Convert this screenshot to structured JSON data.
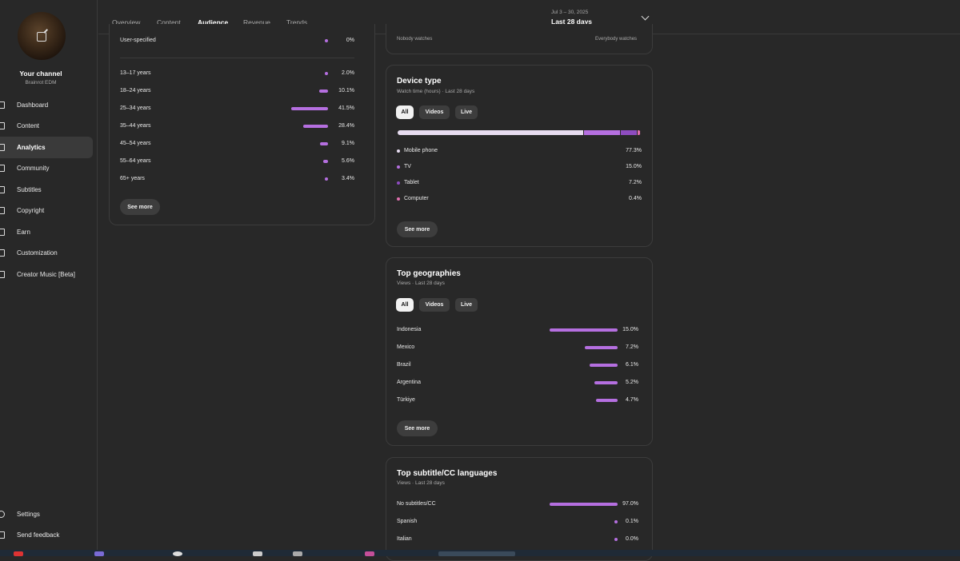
{
  "sidebar": {
    "channel_title": "Your channel",
    "channel_subtitle": "Brainrot EDM",
    "items": [
      {
        "label": "Dashboard",
        "icon": "dashboard-icon"
      },
      {
        "label": "Content",
        "icon": "content-icon"
      },
      {
        "label": "Analytics",
        "icon": "analytics-icon",
        "active": true
      },
      {
        "label": "Community",
        "icon": "community-icon"
      },
      {
        "label": "Subtitles",
        "icon": "subtitles-icon"
      },
      {
        "label": "Copyright",
        "icon": "copyright-icon"
      },
      {
        "label": "Earn",
        "icon": "earn-icon"
      },
      {
        "label": "Customization",
        "icon": "customization-icon"
      },
      {
        "label": "Creator Music [Beta]",
        "icon": "creator-music-icon"
      }
    ],
    "bottom_items": [
      {
        "label": "Settings",
        "icon": "gear-icon"
      },
      {
        "label": "Send feedback",
        "icon": "feedback-icon"
      }
    ]
  },
  "header": {
    "tabs": [
      "Overview",
      "Content",
      "Audience",
      "Revenue",
      "Trends"
    ],
    "active_tab": "Audience",
    "date_range_sub": "Jul 3 – 30, 2025",
    "date_range": "Last 28 days"
  },
  "age_card": {
    "user_specified_label": "User-specified",
    "user_specified_value": "0%",
    "rows": [
      {
        "label": "13–17 years",
        "value": "2.0%",
        "pct": 2.0
      },
      {
        "label": "18–24 years",
        "value": "10.1%",
        "pct": 10.1
      },
      {
        "label": "25–34 years",
        "value": "41.5%",
        "pct": 41.5
      },
      {
        "label": "35–44 years",
        "value": "28.4%",
        "pct": 28.4
      },
      {
        "label": "45–54 years",
        "value": "9.1%",
        "pct": 9.1
      },
      {
        "label": "55–64 years",
        "value": "5.6%",
        "pct": 5.6
      },
      {
        "label": "65+ years",
        "value": "3.4%",
        "pct": 3.4
      }
    ],
    "see_more": "See more"
  },
  "watch_card": {
    "left_label": "Nobody watches",
    "right_label": "Everybody watches"
  },
  "device_card": {
    "title": "Device type",
    "subtitle": "Watch time (hours) · Last 28 days",
    "chips": [
      "All",
      "Videos",
      "Live"
    ],
    "rows": [
      {
        "label": "Mobile phone",
        "value": "77.3%",
        "pct": 77.3,
        "color": "#e7dcf0"
      },
      {
        "label": "TV",
        "value": "15.0%",
        "pct": 15.0,
        "color": "#b56fe0"
      },
      {
        "label": "Tablet",
        "value": "7.2%",
        "pct": 7.2,
        "color": "#8e4cc0"
      },
      {
        "label": "Computer",
        "value": "0.4%",
        "pct": 0.4,
        "color": "#e06fae"
      }
    ],
    "see_more": "See more"
  },
  "geo_card": {
    "title": "Top geographies",
    "subtitle": "Views · Last 28 days",
    "chips": [
      "All",
      "Videos",
      "Live"
    ],
    "rows": [
      {
        "label": "Indonesia",
        "value": "15.0%",
        "pct": 15.0
      },
      {
        "label": "Mexico",
        "value": "7.2%",
        "pct": 7.2
      },
      {
        "label": "Brazil",
        "value": "6.1%",
        "pct": 6.1
      },
      {
        "label": "Argentina",
        "value": "5.2%",
        "pct": 5.2
      },
      {
        "label": "Türkiye",
        "value": "4.7%",
        "pct": 4.7
      }
    ],
    "see_more": "See more"
  },
  "subtitle_card": {
    "title": "Top subtitle/CC languages",
    "subtitle": "Views · Last 28 days",
    "rows": [
      {
        "label": "No subtitles/CC",
        "value": "97.0%",
        "pct": 97.0
      },
      {
        "label": "Spanish",
        "value": "0.1%",
        "pct": 0.1
      },
      {
        "label": "Italian",
        "value": "0.0%",
        "pct": 0.0
      }
    ]
  },
  "colors": {
    "accent": "#b56fe0",
    "background": "#282828"
  }
}
